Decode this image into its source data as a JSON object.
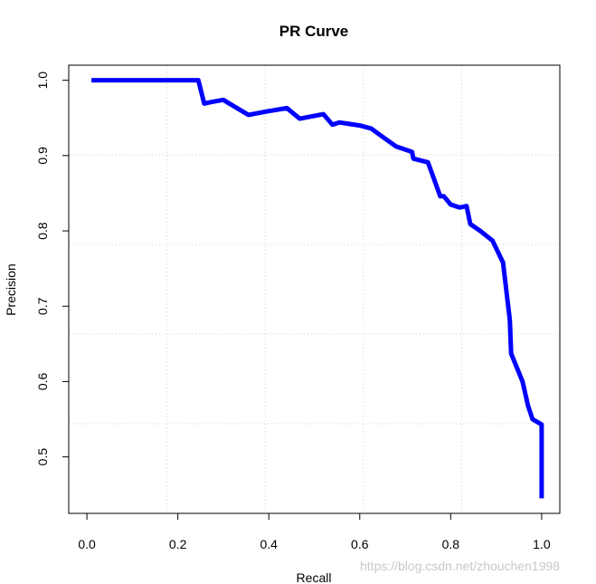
{
  "chart_data": {
    "type": "line",
    "title": "PR Curve",
    "xlabel": "Recall",
    "ylabel": "Precision",
    "xlim": [
      -0.04,
      1.04
    ],
    "ylim": [
      0.425,
      1.02
    ],
    "x_ticks": [
      0.0,
      0.2,
      0.4,
      0.6,
      0.8,
      1.0
    ],
    "x_tick_labels": [
      "0.0",
      "0.2",
      "0.4",
      "0.6",
      "0.8",
      "1.0"
    ],
    "y_ticks": [
      0.5,
      0.6,
      0.7,
      0.8,
      0.9,
      1.0
    ],
    "y_tick_labels": [
      "0.5",
      "0.6",
      "0.7",
      "0.8",
      "0.9",
      "1.0"
    ],
    "grid": true,
    "line_color": "#0000ff",
    "series": [
      {
        "x": [
          0.01,
          0.245,
          0.258,
          0.272,
          0.3,
          0.355,
          0.4,
          0.44,
          0.468,
          0.52,
          0.54,
          0.555,
          0.6,
          0.625,
          0.65,
          0.68,
          0.715,
          0.718,
          0.75,
          0.777,
          0.785,
          0.8,
          0.82,
          0.835,
          0.843,
          0.865,
          0.892,
          0.915,
          0.93,
          0.933,
          0.958,
          0.97,
          0.98,
          1.0,
          1.0
        ],
        "y": [
          1.0,
          1.0,
          0.969,
          0.971,
          0.974,
          0.954,
          0.959,
          0.963,
          0.949,
          0.955,
          0.941,
          0.944,
          0.94,
          0.936,
          0.925,
          0.912,
          0.905,
          0.896,
          0.891,
          0.846,
          0.846,
          0.835,
          0.831,
          0.833,
          0.809,
          0.8,
          0.787,
          0.758,
          0.682,
          0.637,
          0.6,
          0.568,
          0.55,
          0.543,
          0.445
        ]
      }
    ]
  },
  "watermark": "https://blog.csdn.net/zhouchen1998"
}
